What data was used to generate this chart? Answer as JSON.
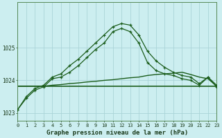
{
  "title": "Graphe pression niveau de la mer (hPa)",
  "bg_color": "#cceef0",
  "grid_color": "#aad4d8",
  "line_color": "#1a5c1a",
  "xlim": [
    0,
    23
  ],
  "ylim": [
    1022.75,
    1026.4
  ],
  "yticks": [
    1023,
    1024,
    1025
  ],
  "xticks": [
    0,
    1,
    2,
    3,
    4,
    5,
    6,
    7,
    8,
    9,
    10,
    11,
    12,
    13,
    14,
    15,
    16,
    17,
    18,
    19,
    20,
    21,
    22,
    23
  ],
  "hours": [
    0,
    1,
    2,
    3,
    4,
    5,
    6,
    7,
    8,
    9,
    10,
    11,
    12,
    13,
    14,
    15,
    16,
    17,
    18,
    19,
    20,
    21,
    22,
    23
  ],
  "series_upper": [
    1023.1,
    1023.5,
    1023.75,
    1023.85,
    1024.1,
    1024.2,
    1024.45,
    1024.65,
    1024.9,
    1025.15,
    1025.4,
    1025.65,
    1025.75,
    1025.7,
    1025.4,
    1024.9,
    1024.6,
    1024.4,
    1024.25,
    1024.15,
    1024.1,
    1023.9,
    1024.1,
    1023.85
  ],
  "series_lower": [
    1023.1,
    1023.45,
    1023.7,
    1023.8,
    1024.05,
    1024.1,
    1024.25,
    1024.45,
    1024.7,
    1024.95,
    1025.15,
    1025.5,
    1025.6,
    1025.5,
    1025.15,
    1024.55,
    1024.3,
    1024.2,
    1024.15,
    1024.05,
    1024.0,
    1023.85,
    1024.1,
    1023.8
  ],
  "series_flat": [
    1023.82,
    1023.82,
    1023.82,
    1023.82,
    1023.82,
    1023.82,
    1023.82,
    1023.82,
    1023.82,
    1023.82,
    1023.82,
    1023.82,
    1023.82,
    1023.82,
    1023.82,
    1023.82,
    1023.82,
    1023.82,
    1023.82,
    1023.82,
    1023.82,
    1023.82,
    1023.82,
    1023.82
  ],
  "series_rise": [
    1023.82,
    1023.82,
    1023.82,
    1023.82,
    1023.85,
    1023.87,
    1023.9,
    1023.92,
    1023.95,
    1023.97,
    1024.0,
    1024.02,
    1024.05,
    1024.08,
    1024.1,
    1024.15,
    1024.18,
    1024.2,
    1024.22,
    1024.25,
    1024.18,
    1024.1,
    1024.05,
    1023.82
  ]
}
